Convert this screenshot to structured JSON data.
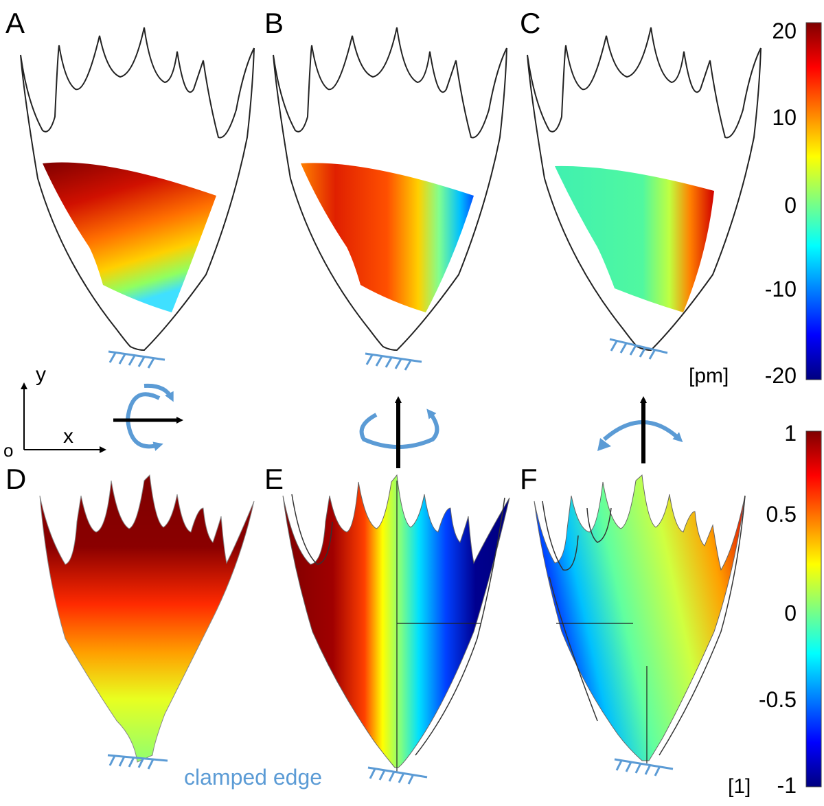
{
  "panels": {
    "A": {
      "label": "A"
    },
    "B": {
      "label": "B"
    },
    "C": {
      "label": "C"
    },
    "D": {
      "label": "D"
    },
    "E": {
      "label": "E"
    },
    "F": {
      "label": "F"
    }
  },
  "colorbar_top": {
    "ticks": [
      "20",
      "10",
      "0",
      "-10",
      "-20"
    ],
    "unit": "[pm]"
  },
  "colorbar_bottom": {
    "ticks": [
      "1",
      "0.5",
      "0",
      "-0.5",
      "-1"
    ],
    "unit": "[1]"
  },
  "axes": {
    "y_label": "y",
    "x_label": "x",
    "origin_label": "o"
  },
  "annotations": {
    "clamped_edge": "clamped edge"
  },
  "colors": {
    "clamp_blue": "#5b9bd5",
    "outline": "#222222",
    "dark_red": "#7f0000",
    "dark_blue": "#00007f"
  }
}
